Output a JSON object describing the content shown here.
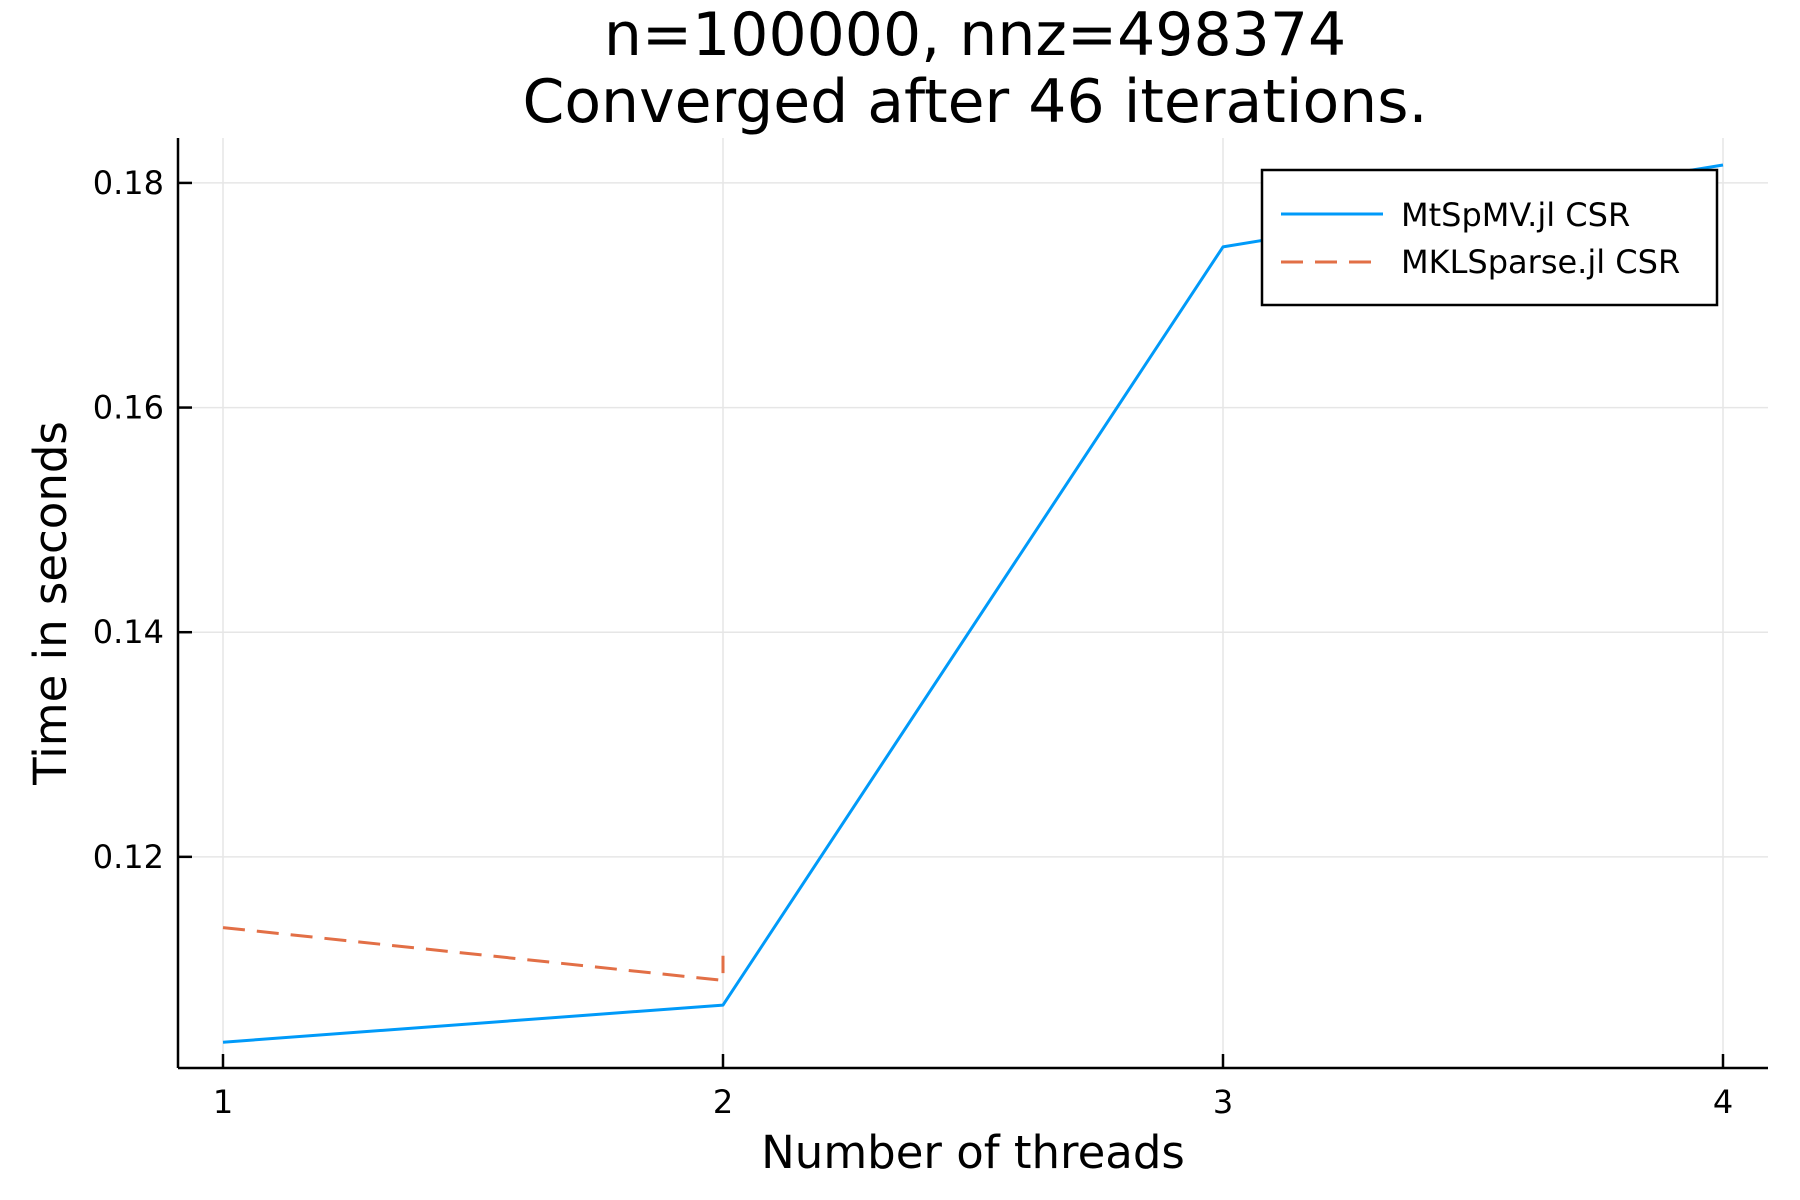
{
  "chart_data": {
    "type": "line",
    "title": [
      "n=100000, nnz=498374",
      "Converged after 46 iterations."
    ],
    "xlabel": "Number of threads",
    "ylabel": "Time in seconds",
    "xlim": [
      0.91,
      4.09
    ],
    "ylim": [
      0.1012,
      0.184
    ],
    "x_ticks": [
      1,
      2,
      3,
      4
    ],
    "x_tick_labels": [
      "1",
      "2",
      "3",
      "4"
    ],
    "y_ticks": [
      0.12,
      0.14,
      0.16,
      0.18
    ],
    "y_tick_labels": [
      "0.12",
      "0.14",
      "0.16",
      "0.18"
    ],
    "grid": true,
    "legend_position": "top-right",
    "series": [
      {
        "name": "MtSpMV.jl CSR",
        "color": "#009af9",
        "style": "solid",
        "x": [
          1,
          2,
          3,
          4
        ],
        "y": [
          0.1035,
          0.1068,
          0.1743,
          0.1816
        ]
      },
      {
        "name": "MKLSparse.jl CSR",
        "color": "#e26f46",
        "style": "dashed",
        "x": [
          1,
          2,
          2
        ],
        "y": [
          0.1137,
          0.109,
          0.1112
        ]
      }
    ]
  }
}
